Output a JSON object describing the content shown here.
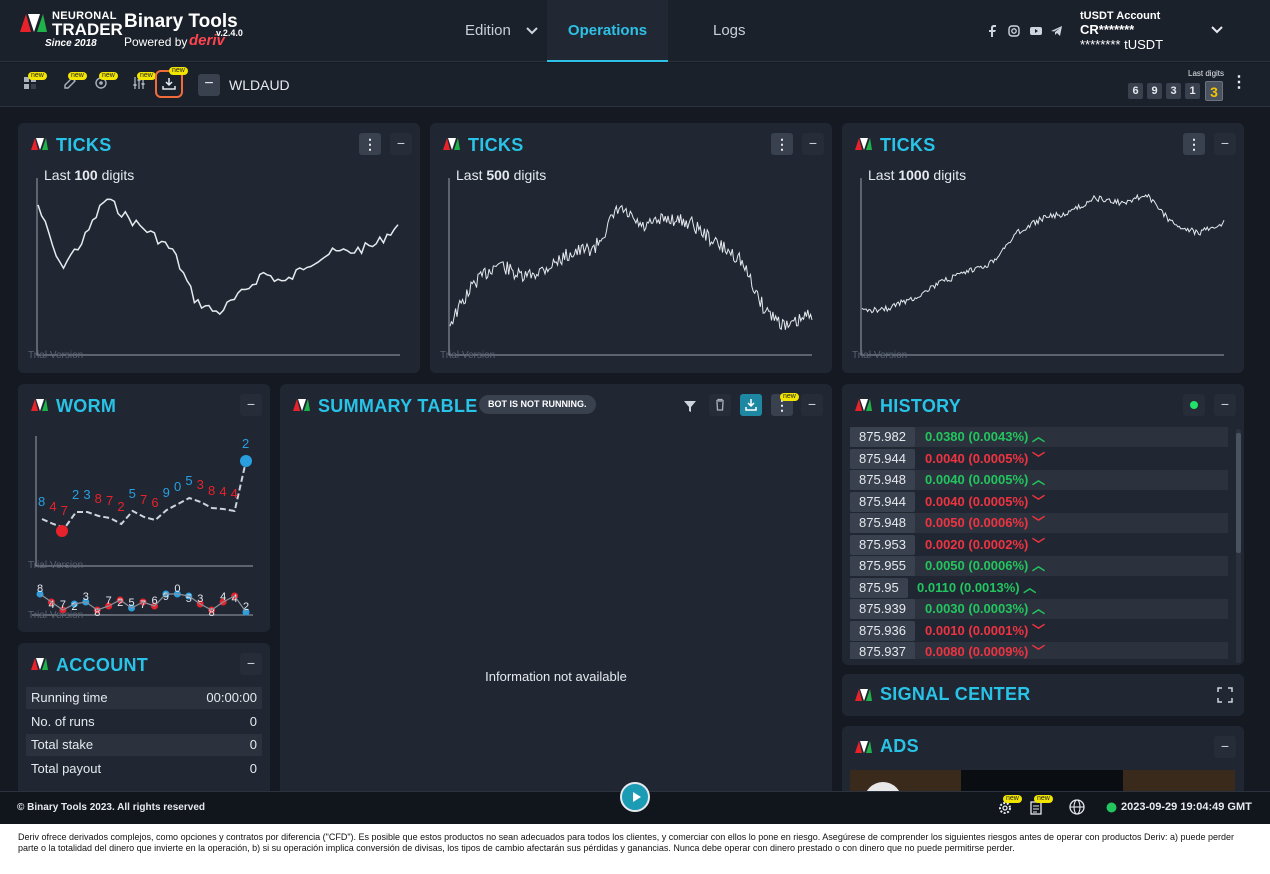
{
  "brand": {
    "line1": "NEURONAL",
    "line2": "TRADER",
    "since": "Since 2018",
    "app_name": "Binary Tools",
    "version": "v.2.4.0",
    "powered_by": "Powered by",
    "powered_brand": "deriv"
  },
  "nav": {
    "tabs": [
      {
        "label": "Edition"
      },
      {
        "label": "Operations"
      },
      {
        "label": "Logs"
      }
    ],
    "active": "Operations"
  },
  "account": {
    "title": "tUSDT Account",
    "id": "CR*******",
    "balance": "******** tUSDT"
  },
  "toolbar": {
    "new_badge": "new",
    "symbol": "WLDAUD",
    "last_digits_label": "Last digits",
    "last_digits": [
      "6",
      "9",
      "3",
      "1",
      "3"
    ]
  },
  "ticks_panels": [
    {
      "title": "TICKS",
      "sub_prefix": "Last",
      "sub_count": "100",
      "sub_suffix": "digits",
      "trial": "Trial Version"
    },
    {
      "title": "TICKS",
      "sub_prefix": "Last",
      "sub_count": "500",
      "sub_suffix": "digits",
      "trial": "Trial Version"
    },
    {
      "title": "TICKS",
      "sub_prefix": "Last",
      "sub_count": "1000",
      "sub_suffix": "digits",
      "trial": "Trial Version"
    }
  ],
  "worm": {
    "title": "WORM",
    "trial": "Trial Version",
    "digits": [
      {
        "d": "8",
        "c": "blue"
      },
      {
        "d": "4",
        "c": "red"
      },
      {
        "d": "7",
        "c": "red"
      },
      {
        "d": "2",
        "c": "blue"
      },
      {
        "d": "3",
        "c": "blue"
      },
      {
        "d": "8",
        "c": "red"
      },
      {
        "d": "7",
        "c": "red"
      },
      {
        "d": "2",
        "c": "red"
      },
      {
        "d": "5",
        "c": "blue"
      },
      {
        "d": "7",
        "c": "red"
      },
      {
        "d": "6",
        "c": "red"
      },
      {
        "d": "9",
        "c": "blue"
      },
      {
        "d": "0",
        "c": "blue"
      },
      {
        "d": "5",
        "c": "blue"
      },
      {
        "d": "3",
        "c": "red"
      },
      {
        "d": "8",
        "c": "red"
      },
      {
        "d": "4",
        "c": "red"
      },
      {
        "d": "4",
        "c": "red"
      },
      {
        "d": "2",
        "c": "blue"
      }
    ]
  },
  "summary": {
    "title": "SUMMARY TABLE",
    "status": "BOT IS NOT RUNNING.",
    "empty": "Information not available"
  },
  "account_panel": {
    "title": "ACCOUNT",
    "rows": [
      {
        "label": "Running time",
        "value": "00:00:00"
      },
      {
        "label": "No. of runs",
        "value": "0"
      },
      {
        "label": "Total stake",
        "value": "0"
      },
      {
        "label": "Total payout",
        "value": "0"
      }
    ]
  },
  "history": {
    "title": "HISTORY",
    "rows": [
      {
        "price": "875.982",
        "change": "0.0380 (0.0043%)",
        "dir": "up"
      },
      {
        "price": "875.944",
        "change": "0.0040 (0.0005%)",
        "dir": "down"
      },
      {
        "price": "875.948",
        "change": "0.0040 (0.0005%)",
        "dir": "up"
      },
      {
        "price": "875.944",
        "change": "0.0040 (0.0005%)",
        "dir": "down"
      },
      {
        "price": "875.948",
        "change": "0.0050 (0.0006%)",
        "dir": "down"
      },
      {
        "price": "875.953",
        "change": "0.0020 (0.0002%)",
        "dir": "down"
      },
      {
        "price": "875.955",
        "change": "0.0050 (0.0006%)",
        "dir": "up"
      },
      {
        "price": "875.95",
        "change": "0.0110 (0.0013%)",
        "dir": "up"
      },
      {
        "price": "875.939",
        "change": "0.0030 (0.0003%)",
        "dir": "up"
      },
      {
        "price": "875.936",
        "change": "0.0010 (0.0001%)",
        "dir": "down"
      },
      {
        "price": "875.937",
        "change": "0.0080 (0.0009%)",
        "dir": "down"
      }
    ]
  },
  "signal": {
    "title": "SIGNAL CENTER"
  },
  "ads": {
    "title": "ADS"
  },
  "footer": {
    "copyright": "© Binary Tools 2023. All rights reserved",
    "datetime": "2023-09-29 19:04:49 GMT",
    "new_badge": "new"
  },
  "disclaimer": "Deriv ofrece derivados complejos, como opciones y contratos por diferencia (\"CFD\"). Es posible que estos productos no sean adecuados para todos los clientes, y comerciar con ellos lo pone en riesgo. Asegúrese de comprender los siguientes riesgos antes de operar con productos Deriv: a) puede perder parte o la totalidad del dinero que invierte en la operación, b) si su operación implica conversión de divisas, los tipos de cambio afectarán sus pérdidas y ganancias. Nunca debe operar con dinero prestado o con dinero que no puede permitirse perder.",
  "colors": {
    "accent": "#29c3e8",
    "up": "#22c55e",
    "down": "#ef3340",
    "badge": "#f2e600"
  }
}
